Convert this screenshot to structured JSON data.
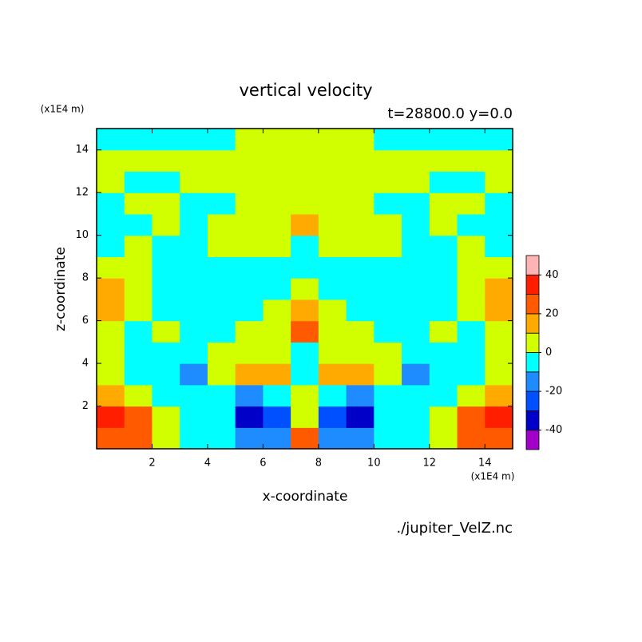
{
  "chart_data": {
    "type": "contour",
    "title": "vertical velocity",
    "subtitle": "t=28800.0 y=0.0",
    "x_label": "x-coordinate",
    "y_label": "z-coordinate",
    "x_unit": "(x1E4 m)",
    "y_unit": "(x1E4 m)",
    "source": "./jupiter_VelZ.nc",
    "xlim": [
      0,
      15
    ],
    "ylim": [
      0,
      15
    ],
    "xticks": [
      2,
      4,
      6,
      8,
      10,
      12,
      14
    ],
    "yticks": [
      2,
      4,
      6,
      8,
      10,
      12,
      14
    ],
    "x": [
      0.5,
      1.5,
      2.5,
      3.5,
      4.5,
      5.5,
      6.5,
      7.5,
      8.5,
      9.5,
      10.5,
      11.5,
      12.5,
      13.5,
      14.5
    ],
    "y": [
      0.5,
      1.5,
      2.5,
      3.5,
      4.5,
      5.5,
      6.5,
      7.5,
      8.5,
      9.5,
      10.5,
      11.5,
      12.5,
      13.5,
      14.5
    ],
    "z": [
      [
        22,
        25,
        8,
        -5,
        -5,
        -15,
        -15,
        25,
        -15,
        -15,
        -5,
        -5,
        8,
        25,
        22
      ],
      [
        32,
        25,
        5,
        -5,
        -5,
        -35,
        -25,
        5,
        -25,
        -35,
        -5,
        -5,
        5,
        25,
        32
      ],
      [
        15,
        8,
        -5,
        -5,
        -5,
        -15,
        -5,
        5,
        -5,
        -15,
        -5,
        -5,
        -5,
        8,
        15
      ],
      [
        5,
        -5,
        -5,
        -15,
        5,
        15,
        15,
        -5,
        15,
        15,
        5,
        -15,
        -5,
        -5,
        5
      ],
      [
        5,
        -5,
        -5,
        -5,
        5,
        5,
        5,
        -5,
        5,
        5,
        5,
        -5,
        -5,
        -5,
        5
      ],
      [
        5,
        -5,
        5,
        -5,
        -5,
        5,
        5,
        25,
        5,
        5,
        -5,
        -5,
        5,
        -5,
        5
      ],
      [
        15,
        5,
        -5,
        -5,
        -5,
        -5,
        5,
        15,
        5,
        -5,
        -5,
        -5,
        -5,
        5,
        15
      ],
      [
        15,
        5,
        -5,
        -5,
        -5,
        -5,
        -5,
        5,
        -5,
        -5,
        -5,
        -5,
        -5,
        5,
        15
      ],
      [
        5,
        5,
        -5,
        -5,
        -5,
        -5,
        -5,
        -5,
        -5,
        -5,
        -5,
        -5,
        -5,
        5,
        5
      ],
      [
        -5,
        5,
        -5,
        -5,
        5,
        5,
        5,
        -5,
        5,
        5,
        5,
        -5,
        -5,
        5,
        -5
      ],
      [
        -5,
        -5,
        5,
        -5,
        5,
        5,
        5,
        15,
        5,
        5,
        5,
        -5,
        5,
        -5,
        -5
      ],
      [
        -5,
        5,
        5,
        -5,
        -5,
        5,
        5,
        5,
        5,
        5,
        -5,
        -5,
        5,
        5,
        -5
      ],
      [
        5,
        -5,
        -5,
        5,
        5,
        5,
        5,
        5,
        5,
        5,
        5,
        5,
        -5,
        -5,
        5
      ],
      [
        5,
        5,
        5,
        5,
        5,
        5,
        5,
        5,
        5,
        5,
        5,
        5,
        5,
        5,
        5
      ],
      [
        -5,
        -5,
        -5,
        -5,
        -5,
        5,
        5,
        5,
        5,
        5,
        -5,
        -5,
        -5,
        -5,
        -5
      ]
    ],
    "levels": [
      -40,
      -30,
      -20,
      -10,
      0,
      10,
      20,
      30,
      40
    ],
    "colors": [
      "#a000c8",
      "#0000c8",
      "#0050ff",
      "#1e8cff",
      "#00ffff",
      "#d2ff00",
      "#ffaa00",
      "#ff5a00",
      "#ff1e00",
      "#ffb4b4"
    ],
    "clim": [
      -50,
      50
    ],
    "cbticks": [
      -40,
      -20,
      0,
      20,
      40
    ]
  }
}
